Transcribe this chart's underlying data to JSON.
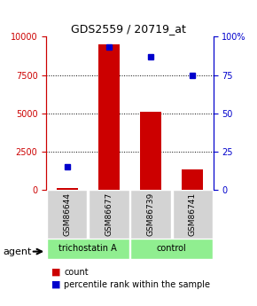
{
  "title": "GDS2559 / 20719_at",
  "samples": [
    "GSM86644",
    "GSM86677",
    "GSM86739",
    "GSM86741"
  ],
  "counts": [
    120,
    9500,
    5100,
    1300
  ],
  "percentiles": [
    15,
    93,
    87,
    75
  ],
  "groups": [
    "trichostatin A",
    "trichostatin A",
    "control",
    "control"
  ],
  "group_colors": {
    "trichostatin A": "#90EE90",
    "control": "#90EE90"
  },
  "bar_color": "#CC0000",
  "dot_color": "#0000CC",
  "ylim_left": [
    0,
    10000
  ],
  "ylim_right": [
    0,
    100
  ],
  "yticks_left": [
    0,
    2500,
    5000,
    7500,
    10000
  ],
  "yticks_right": [
    0,
    25,
    50,
    75,
    100
  ],
  "grid_color": "#000000",
  "bg_color": "#FFFFFF",
  "plot_bg": "#FFFFFF",
  "title_color": "#000000",
  "left_axis_color": "#CC0000",
  "right_axis_color": "#0000CC",
  "legend_count_color": "#CC0000",
  "legend_pct_color": "#0000CC"
}
